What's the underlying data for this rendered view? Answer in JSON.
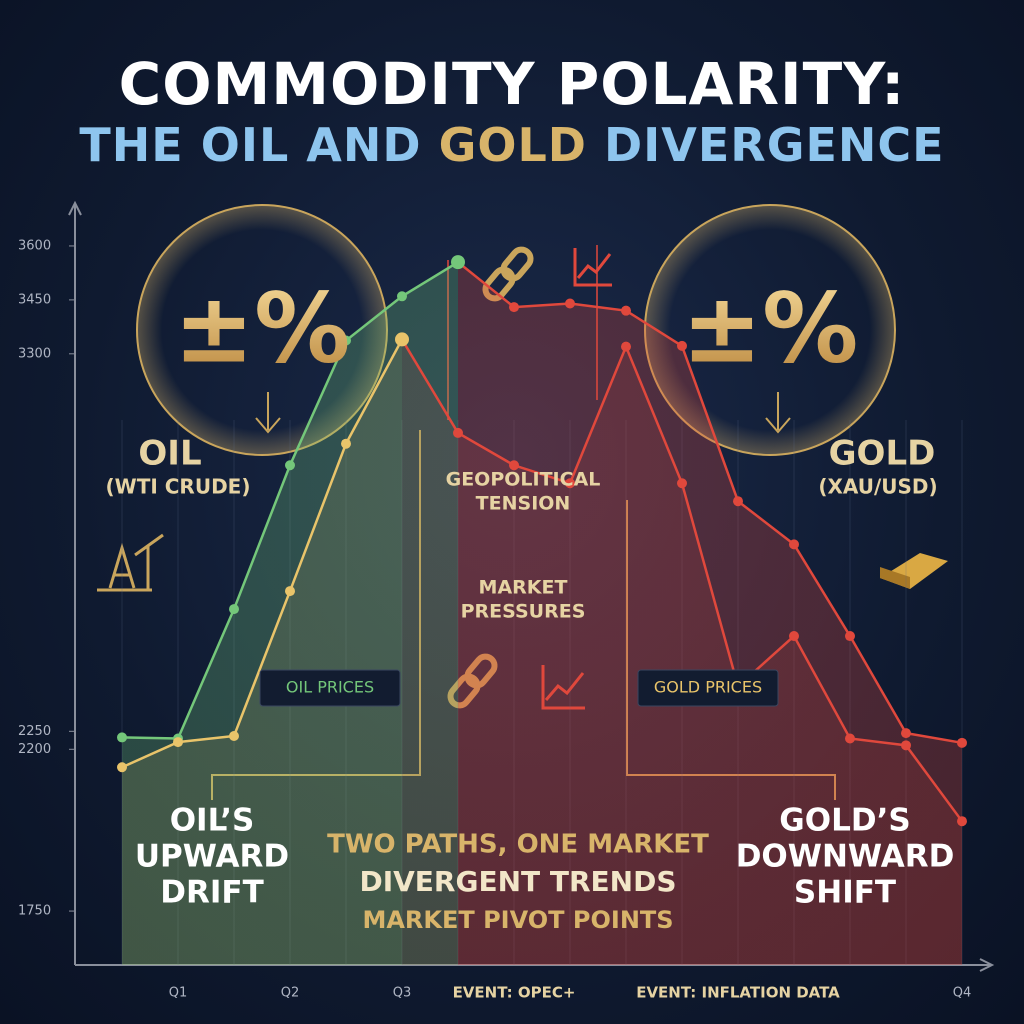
{
  "chart_data": {
    "type": "line",
    "title": "COMMODITY POLARITY:",
    "subtitle_parts": [
      "THE OIL AND ",
      "GOLD",
      " DIVERGENCE"
    ],
    "categories": [
      null,
      "Q1",
      null,
      "Q2",
      null,
      "Q3",
      null,
      "EVENT: OPEC+",
      null,
      null,
      null,
      "EVENT: INFLATION DATA",
      null,
      null,
      null,
      "Q4"
    ],
    "series": [
      {
        "name": "OIL PRICES",
        "color": "#74c77a",
        "values": [
          2233,
          2230,
          2590,
          2990,
          3337,
          3460,
          3555,
          3430,
          3440,
          3420,
          3322,
          2890,
          2770,
          2515,
          2245,
          2218
        ]
      },
      {
        "name": "GOLD PRICES",
        "color": "#e9c46a",
        "values": [
          2150,
          2220,
          2237,
          2640,
          3050,
          3340,
          3080,
          2990,
          2940,
          3320,
          2940,
          2375,
          2515,
          2230,
          2211,
          2000
        ]
      }
    ],
    "decline_color": "#e0483c",
    "ylim": [
      1600,
      3700
    ],
    "yticks": [
      1750,
      2200,
      2250,
      3300,
      3450,
      3600
    ],
    "grid": false,
    "annotations": {
      "oil_badge": "±%",
      "gold_badge": "±%",
      "oil_name": "OIL",
      "oil_sub": "(WTI CRUDE)",
      "gold_name": "GOLD",
      "gold_sub": "(XAU/USD)",
      "tension": [
        "GEOPOLITICAL",
        "TENSION"
      ],
      "pressures": [
        "MARKET",
        "PRESSURES"
      ],
      "oil_drift": [
        "OIL’S",
        "UPWARD",
        "DRIFT"
      ],
      "gold_shift": [
        "GOLD’S",
        "DOWNWARD",
        "SHIFT"
      ],
      "center": [
        "TWO PATHS, ONE MARKET",
        "DIVERGENT TRENDS",
        "MARKET PIVOT POINTS"
      ]
    }
  }
}
